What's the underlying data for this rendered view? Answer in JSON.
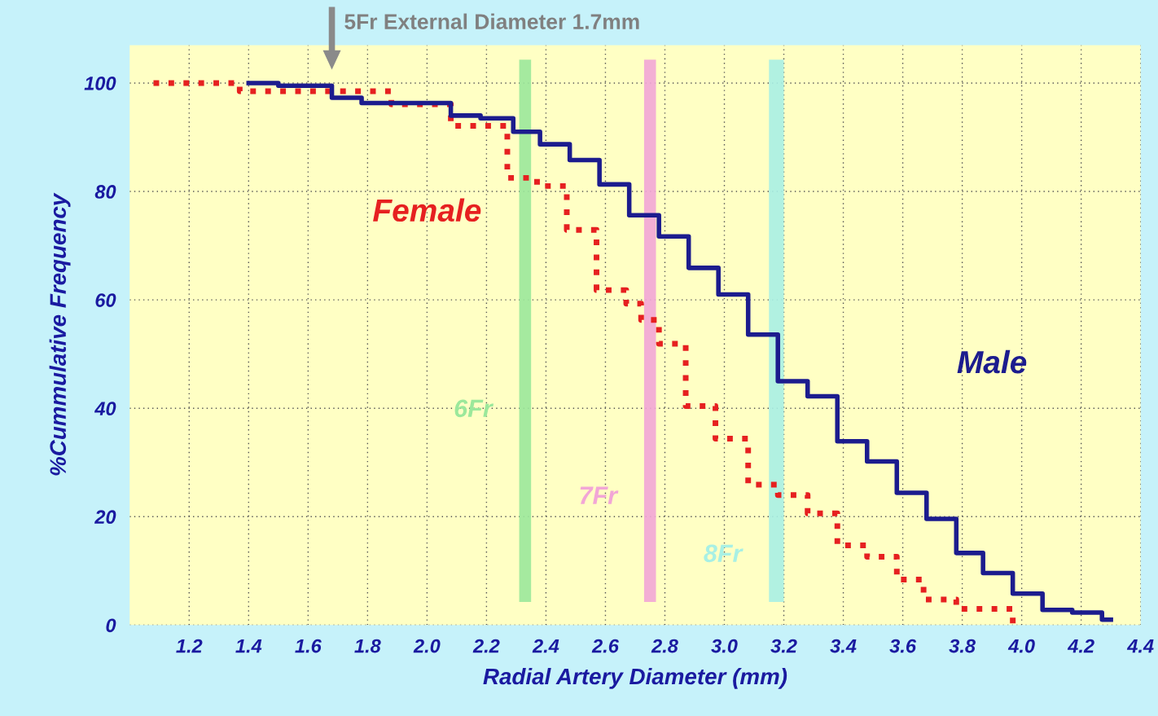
{
  "chart_data": {
    "type": "step",
    "xlabel": "Radial Artery Diameter (mm)",
    "ylabel": "%Cummulative Frequency",
    "xlim": [
      1.0,
      4.4
    ],
    "ylim": [
      0,
      107
    ],
    "xticks": [
      {
        "value": 1.2,
        "label": "1.2"
      },
      {
        "value": 1.4,
        "label": "1.4"
      },
      {
        "value": 1.6,
        "label": "1.6"
      },
      {
        "value": 1.8,
        "label": "1.8"
      },
      {
        "value": 2.0,
        "label": "2.0"
      },
      {
        "value": 2.2,
        "label": "2.2"
      },
      {
        "value": 2.4,
        "label": "2.4"
      },
      {
        "value": 2.6,
        "label": "2.6"
      },
      {
        "value": 2.8,
        "label": "2.8"
      },
      {
        "value": 3.0,
        "label": "3.0"
      },
      {
        "value": 3.2,
        "label": "3.2"
      },
      {
        "value": 3.4,
        "label": "3.4"
      },
      {
        "value": 3.6,
        "label": "3.6"
      },
      {
        "value": 3.8,
        "label": "3.8"
      },
      {
        "value": 4.0,
        "label": "4.0"
      },
      {
        "value": 4.2,
        "label": "4.2"
      },
      {
        "value": 4.4,
        "label": "4.4"
      }
    ],
    "yticks": [
      0,
      20,
      40,
      60,
      80,
      100
    ],
    "grid": true,
    "legend": false,
    "series": [
      {
        "name": "Female",
        "color": "#e62020",
        "line_style": "dotted",
        "x": [
          1.08,
          1.37,
          1.88,
          2.08,
          2.27,
          2.37,
          2.47,
          2.57,
          2.67,
          2.72,
          2.78,
          2.87,
          2.97,
          3.08,
          3.18,
          3.28,
          3.38,
          3.48,
          3.58,
          3.67,
          3.78,
          3.97
        ],
        "values": [
          100,
          98.5,
          96.1,
          92.1,
          82.5,
          81,
          72.9,
          61.8,
          59.3,
          56.3,
          51.9,
          40.4,
          34.4,
          25.9,
          24,
          20.6,
          14.7,
          12.6,
          8.4,
          4.7,
          3,
          0
        ]
      },
      {
        "name": "Male",
        "color": "#1c1c8e",
        "line_style": "solid",
        "x": [
          1.4,
          1.5,
          1.68,
          1.78,
          2.08,
          2.18,
          2.29,
          2.38,
          2.48,
          2.58,
          2.68,
          2.78,
          2.88,
          2.98,
          3.08,
          3.18,
          3.28,
          3.38,
          3.48,
          3.58,
          3.68,
          3.78,
          3.87,
          3.97,
          4.07,
          4.17,
          4.27,
          4.3
        ],
        "values": [
          100,
          99.5,
          97.3,
          96.3,
          94,
          93.5,
          91,
          88.7,
          85.8,
          81.3,
          75.6,
          71.7,
          65.9,
          61,
          53.6,
          45,
          42.2,
          33.9,
          30.2,
          24.4,
          19.6,
          13.3,
          9.6,
          5.8,
          2.8,
          2.3,
          1,
          1
        ]
      }
    ],
    "bands": [
      {
        "axis": "x",
        "from": 2.31,
        "to": 2.35,
        "label": "6Fr",
        "color": "#9be89b"
      },
      {
        "axis": "x",
        "from": 2.73,
        "to": 2.77,
        "label": "7Fr",
        "color": "#f2a6d6"
      },
      {
        "axis": "x",
        "from": 3.15,
        "to": 3.2,
        "label": "8Fr",
        "color": "#a8f0e4"
      }
    ],
    "annotations": [
      "5Fr External Diameter 1.7mm"
    ]
  }
}
